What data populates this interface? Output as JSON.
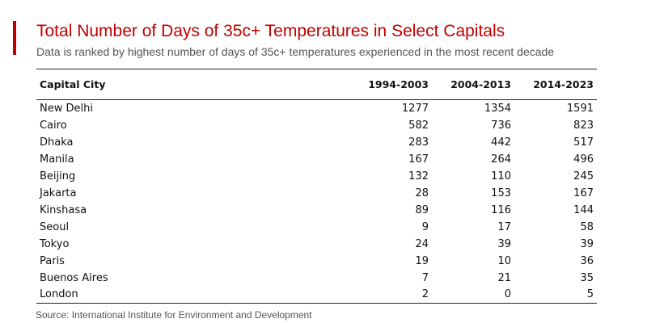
{
  "colors": {
    "accent": "#c00000",
    "text": "#111111",
    "muted": "#555555"
  },
  "chart_data": {
    "type": "table",
    "title": "Total Number of Days of 35c+ Temperatures in Select Capitals",
    "subtitle": "Data is ranked by highest number of days of 35c+ temperatures experienced in the most recent decade",
    "columns": [
      "Capital City",
      "1994-2003",
      "2004-2013",
      "2014-2023"
    ],
    "rows": [
      {
        "city": "New Delhi",
        "values": [
          1277,
          1354,
          1591
        ]
      },
      {
        "city": "Cairo",
        "values": [
          582,
          736,
          823
        ]
      },
      {
        "city": "Dhaka",
        "values": [
          283,
          442,
          517
        ]
      },
      {
        "city": "Manila",
        "values": [
          167,
          264,
          496
        ]
      },
      {
        "city": "Beijing",
        "values": [
          132,
          110,
          245
        ]
      },
      {
        "city": "Jakarta",
        "values": [
          28,
          153,
          167
        ]
      },
      {
        "city": "Kinshasa",
        "values": [
          89,
          116,
          144
        ]
      },
      {
        "city": "Seoul",
        "values": [
          9,
          17,
          58
        ]
      },
      {
        "city": "Tokyo",
        "values": [
          24,
          39,
          39
        ]
      },
      {
        "city": "Paris",
        "values": [
          19,
          10,
          36
        ]
      },
      {
        "city": "Buenos Aires",
        "values": [
          7,
          21,
          35
        ]
      },
      {
        "city": "London",
        "values": [
          2,
          0,
          5
        ]
      }
    ],
    "source": "Source: International Institute for Environment and Development"
  }
}
